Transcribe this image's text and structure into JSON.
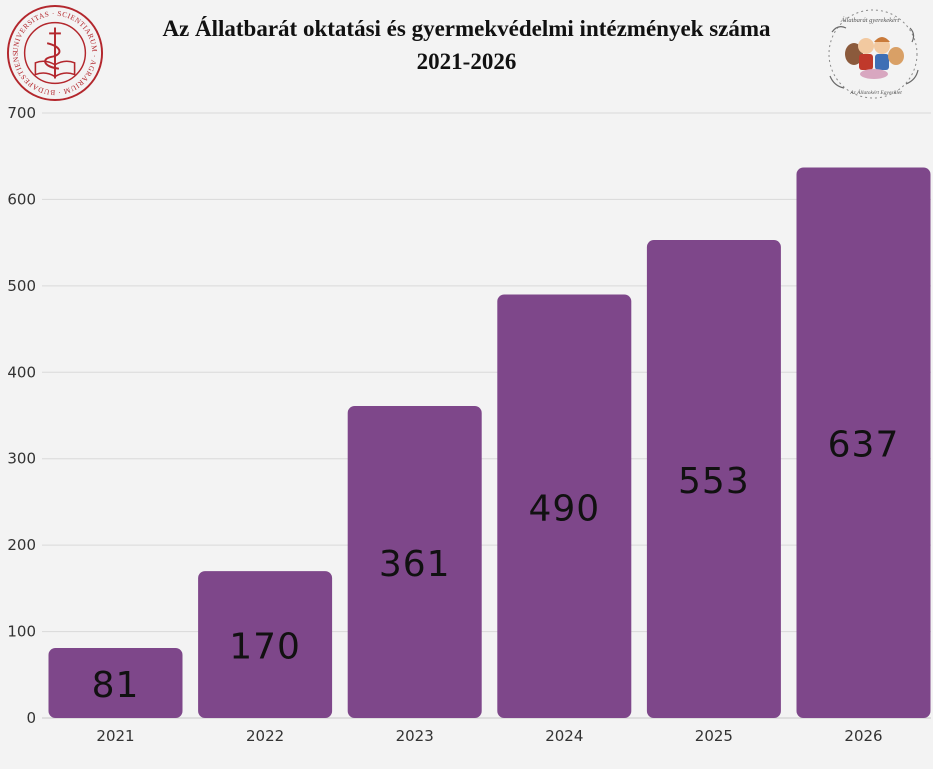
{
  "title": {
    "line1": "Az Állatbarát oktatási és gyermekvédelmi intézmények száma",
    "line2": "2021-2026"
  },
  "logos": {
    "left": {
      "icon": "university-seal-icon",
      "color": "#b3272d",
      "text": "UNIVERSITAS · SCIENTIARUM · AGRARIUM · BUDAPESTIENSIS · 1787 ·"
    },
    "right": {
      "icon": "animal-friendly-kids-badge-icon",
      "text_top": "Állatbarát gyerekekért",
      "text_bottom": "Az Állatokért Egyesület"
    }
  },
  "colors": {
    "bar": "#7e478a",
    "grid": "#d9d9d9",
    "axis": "#c8c8c8",
    "label": "#111111"
  },
  "chart_data": {
    "type": "bar",
    "categories": [
      "2021",
      "2022",
      "2023",
      "2024",
      "2025",
      "2026"
    ],
    "values": [
      81,
      170,
      361,
      490,
      553,
      637
    ],
    "data_labels": [
      "81",
      "170",
      "361",
      "490",
      "553",
      "637"
    ],
    "title": "Az Állatbarát oktatási és gyermekvédelmi intézmények száma 2021-2026",
    "xlabel": "",
    "ylabel": "",
    "ylim": [
      0,
      700
    ],
    "yticks": [
      0,
      100,
      200,
      300,
      400,
      500,
      600,
      700
    ],
    "grid": true,
    "legend": "none"
  }
}
